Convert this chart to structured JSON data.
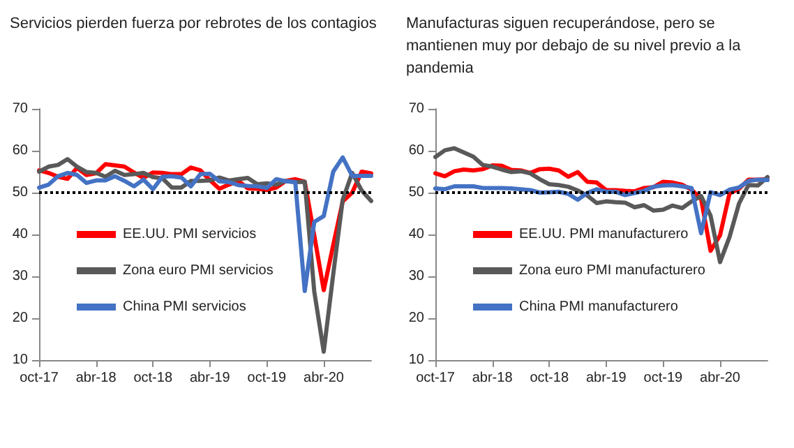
{
  "chart_data": [
    {
      "type": "line",
      "title": "Servicios pierden fuerza por rebrotes de los contagios",
      "categories": [
        "oct-17",
        null,
        null,
        null,
        null,
        null,
        "abr-18",
        null,
        null,
        null,
        null,
        null,
        "oct-18",
        null,
        null,
        null,
        null,
        null,
        "abr-19",
        null,
        null,
        null,
        null,
        null,
        "oct-19",
        null,
        null,
        null,
        null,
        null,
        "abr-20",
        null,
        null,
        null,
        null,
        null
      ],
      "series": [
        {
          "name": "EE.UU. PMI servicios",
          "color": "#ff0000",
          "values": [
            55.3,
            54.7,
            53.8,
            53.3,
            55.9,
            54.2,
            54.6,
            56.8,
            56.5,
            56.2,
            54.8,
            53.5,
            54.8,
            54.7,
            54.4,
            54.4,
            56.0,
            55.3,
            53.0,
            50.9,
            51.9,
            52.8,
            51.0,
            50.9,
            50.6,
            51.2,
            52.8,
            53.2,
            52.6,
            39.8,
            26.7,
            37.5,
            47.9,
            50.0,
            55.0,
            54.6
          ]
        },
        {
          "name": "Zona euro PMI servicios",
          "color": "#595959",
          "values": [
            55.0,
            56.2,
            56.6,
            58.0,
            56.2,
            54.9,
            54.7,
            53.8,
            55.2,
            54.2,
            54.4,
            54.7,
            53.7,
            53.4,
            51.2,
            51.2,
            52.8,
            52.8,
            52.9,
            53.6,
            52.9,
            53.2,
            53.5,
            52.0,
            52.2,
            51.9,
            52.8,
            52.5,
            52.6,
            26.4,
            12.0,
            30.5,
            48.3,
            54.7,
            50.5,
            48.0
          ]
        },
        {
          "name": "China PMI servicios",
          "color": "#4472c4",
          "values": [
            51.2,
            51.9,
            53.9,
            54.7,
            54.2,
            52.3,
            52.9,
            52.9,
            53.9,
            52.8,
            51.5,
            53.1,
            50.8,
            53.8,
            53.9,
            53.6,
            51.5,
            54.4,
            54.5,
            52.7,
            52.5,
            51.8,
            51.6,
            51.5,
            51.1,
            53.2,
            52.7,
            52.5,
            26.5,
            43.0,
            44.4,
            55.0,
            58.4,
            54.0,
            54.0,
            54.0
          ]
        }
      ],
      "ylim": [
        10,
        70
      ],
      "yticks": [
        10,
        20,
        30,
        40,
        50,
        60,
        70
      ],
      "grid": false,
      "legend": "left",
      "marker": "none",
      "line_style": "solid",
      "ref_lines": [
        {
          "axis": "y",
          "value": 50,
          "color": "#000000",
          "line_style": "dotted"
        }
      ]
    },
    {
      "type": "line",
      "title": "Manufacturas siguen recuperándose, pero se mantienen muy por debajo de su nivel previo a la pandemia",
      "categories": [
        "oct-17",
        null,
        null,
        null,
        null,
        null,
        "abr-18",
        null,
        null,
        null,
        null,
        null,
        "oct-18",
        null,
        null,
        null,
        null,
        null,
        "abr-19",
        null,
        null,
        null,
        null,
        null,
        "oct-19",
        null,
        null,
        null,
        null,
        null,
        "abr-20",
        null,
        null,
        null,
        null,
        null
      ],
      "series": [
        {
          "name": "EE.UU. PMI manufacturero",
          "color": "#ff0000",
          "values": [
            54.6,
            53.9,
            55.1,
            55.5,
            55.3,
            55.6,
            56.5,
            56.4,
            55.4,
            55.3,
            54.7,
            55.6,
            55.7,
            55.3,
            53.8,
            54.9,
            52.6,
            52.4,
            50.6,
            50.6,
            50.4,
            50.3,
            51.1,
            51.3,
            52.6,
            52.4,
            51.9,
            50.7,
            48.5,
            36.1,
            39.8,
            49.8,
            50.9,
            53.1,
            53.1,
            53.2
          ]
        },
        {
          "name": "Zona euro PMI manufacturero",
          "color": "#595959",
          "values": [
            58.5,
            60.1,
            60.6,
            59.6,
            58.6,
            56.6,
            56.2,
            55.5,
            54.9,
            55.1,
            54.6,
            53.2,
            52.0,
            51.8,
            51.4,
            50.5,
            49.3,
            47.5,
            47.9,
            47.7,
            47.6,
            46.5,
            47.0,
            45.7,
            45.9,
            46.9,
            46.3,
            47.9,
            49.2,
            44.5,
            33.4,
            39.4,
            47.4,
            51.8,
            51.7,
            53.7
          ]
        },
        {
          "name": "China PMI manufacturero",
          "color": "#4472c4",
          "values": [
            51.0,
            50.8,
            51.5,
            51.5,
            51.5,
            51.1,
            51.1,
            51.1,
            51.0,
            50.8,
            50.6,
            50.0,
            50.1,
            50.2,
            49.7,
            48.3,
            49.9,
            50.8,
            50.2,
            50.2,
            49.4,
            49.9,
            50.4,
            51.4,
            51.7,
            51.8,
            51.5,
            51.1,
            40.3,
            50.1,
            49.4,
            50.7,
            51.2,
            52.8,
            53.1,
            53.0
          ]
        }
      ],
      "ylim": [
        10,
        70
      ],
      "yticks": [
        10,
        20,
        30,
        40,
        50,
        60,
        70
      ],
      "grid": false,
      "legend": "left",
      "marker": "none",
      "line_style": "solid",
      "ref_lines": [
        {
          "axis": "y",
          "value": 50,
          "color": "#000000",
          "line_style": "dotted"
        }
      ]
    }
  ]
}
